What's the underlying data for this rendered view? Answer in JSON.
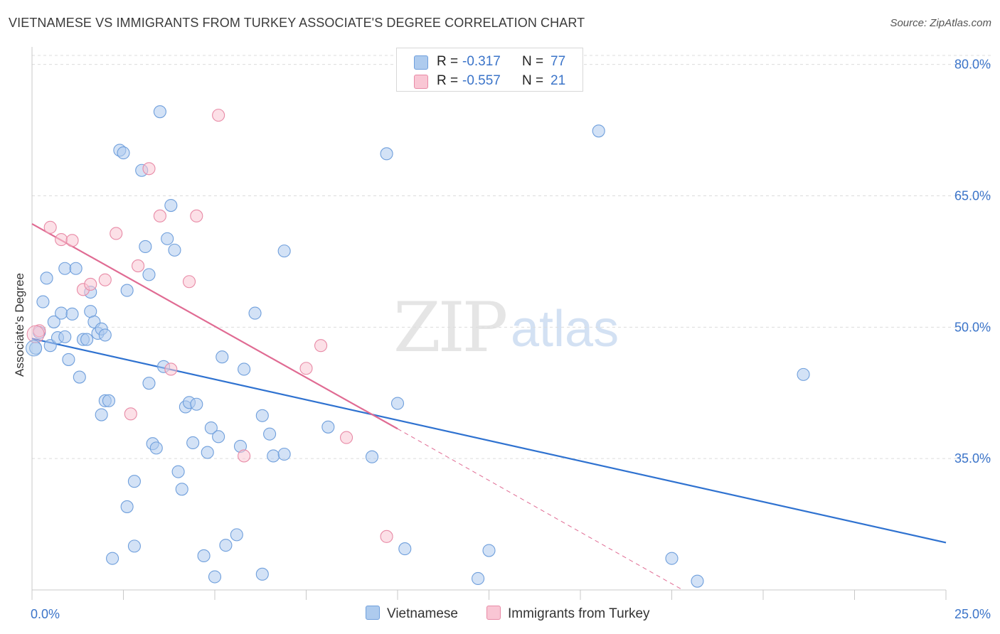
{
  "header": {
    "title": "VIETNAMESE VS IMMIGRANTS FROM TURKEY ASSOCIATE'S DEGREE CORRELATION CHART",
    "source": "Source: ZipAtlas.com"
  },
  "watermark": {
    "zip": "ZIP",
    "atlas": "atlas"
  },
  "legend": {
    "rows": [
      {
        "r_label": "R =",
        "r_value": "-0.317",
        "n_label": "N =",
        "n_value": "77",
        "color": "#aecbee",
        "border": "#6f9fdc"
      },
      {
        "r_label": "R =",
        "r_value": "-0.557",
        "n_label": "N =",
        "n_value": "21",
        "color": "#f9c6d4",
        "border": "#e88aa6"
      }
    ]
  },
  "bottom_legend": {
    "vietnamese": "Vietnamese",
    "turkey": "Immigrants from Turkey"
  },
  "colors": {
    "blue_fill": "#aecbee",
    "blue_edge": "#6f9fdc",
    "blue_line": "#2f72d0",
    "pink_fill": "#f9c6d4",
    "pink_edge": "#e88aa6",
    "pink_line": "#e06b93",
    "grid": "#dcdcdc",
    "tick_label": "#3b74c9"
  },
  "chart_data": {
    "type": "scatter",
    "title": "VIETNAMESE VS IMMIGRANTS FROM TURKEY ASSOCIATE'S DEGREE CORRELATION CHART",
    "xlabel": "",
    "ylabel": "Associate's Degree",
    "xlim": [
      0,
      25
    ],
    "ylim": [
      20,
      82
    ],
    "x_tick_labels": [
      "0.0%",
      "25.0%"
    ],
    "y_ticks": [
      35,
      50,
      65,
      80
    ],
    "y_tick_labels": [
      "35.0%",
      "50.0%",
      "65.0%",
      "80.0%"
    ],
    "grid": true,
    "legend_position": "top-center",
    "series": [
      {
        "name": "Vietnamese",
        "r": -0.317,
        "n": 77,
        "trend": {
          "x": [
            0,
            25
          ],
          "y": [
            48.7,
            25.4
          ]
        },
        "points": [
          [
            0.1,
            47.6
          ],
          [
            0.2,
            49.4
          ],
          [
            0.3,
            52.9
          ],
          [
            0.4,
            55.6
          ],
          [
            0.5,
            47.9
          ],
          [
            0.6,
            50.6
          ],
          [
            0.7,
            48.8
          ],
          [
            0.8,
            51.6
          ],
          [
            0.9,
            48.9
          ],
          [
            0.9,
            56.7
          ],
          [
            1.0,
            46.3
          ],
          [
            1.1,
            51.5
          ],
          [
            1.2,
            56.7
          ],
          [
            1.3,
            44.3
          ],
          [
            1.4,
            48.6
          ],
          [
            1.5,
            48.6
          ],
          [
            1.6,
            54.0
          ],
          [
            1.6,
            51.8
          ],
          [
            1.7,
            50.6
          ],
          [
            1.8,
            49.3
          ],
          [
            1.9,
            40.0
          ],
          [
            1.9,
            49.8
          ],
          [
            2.0,
            49.1
          ],
          [
            2.0,
            41.6
          ],
          [
            2.1,
            41.6
          ],
          [
            2.2,
            23.6
          ],
          [
            2.4,
            70.2
          ],
          [
            2.5,
            69.9
          ],
          [
            2.6,
            54.2
          ],
          [
            2.6,
            29.5
          ],
          [
            2.8,
            32.4
          ],
          [
            2.8,
            25.0
          ],
          [
            3.0,
            67.9
          ],
          [
            3.1,
            59.2
          ],
          [
            3.2,
            43.6
          ],
          [
            3.2,
            56.0
          ],
          [
            3.3,
            36.7
          ],
          [
            3.4,
            36.2
          ],
          [
            3.5,
            74.6
          ],
          [
            3.6,
            45.5
          ],
          [
            3.7,
            60.1
          ],
          [
            3.8,
            63.9
          ],
          [
            3.9,
            58.8
          ],
          [
            4.1,
            31.5
          ],
          [
            4.2,
            40.9
          ],
          [
            4.3,
            41.4
          ],
          [
            4.4,
            36.8
          ],
          [
            4.5,
            41.2
          ],
          [
            4.7,
            23.9
          ],
          [
            4.8,
            35.7
          ],
          [
            4.9,
            38.5
          ],
          [
            5.0,
            21.5
          ],
          [
            5.1,
            37.5
          ],
          [
            5.2,
            46.6
          ],
          [
            5.3,
            25.1
          ],
          [
            5.6,
            26.3
          ],
          [
            5.7,
            36.4
          ],
          [
            5.8,
            45.2
          ],
          [
            6.1,
            51.6
          ],
          [
            6.3,
            39.9
          ],
          [
            6.3,
            21.8
          ],
          [
            6.5,
            37.8
          ],
          [
            6.6,
            35.3
          ],
          [
            6.9,
            35.5
          ],
          [
            6.9,
            58.7
          ],
          [
            8.1,
            38.6
          ],
          [
            9.3,
            35.2
          ],
          [
            9.7,
            69.8
          ],
          [
            10.0,
            41.3
          ],
          [
            10.2,
            24.7
          ],
          [
            12.2,
            21.3
          ],
          [
            12.5,
            24.5
          ],
          [
            15.5,
            72.4
          ],
          [
            17.5,
            23.6
          ],
          [
            18.2,
            21.0
          ],
          [
            21.1,
            44.6
          ],
          [
            4.0,
            33.5
          ]
        ]
      },
      {
        "name": "Immigrants from Turkey",
        "r": -0.557,
        "n": 21,
        "trend": {
          "x": [
            0,
            10
          ],
          "y": [
            61.8,
            38.4
          ]
        },
        "trend_extension": {
          "x": [
            10,
            17.8
          ],
          "y": [
            38.4,
            20.0
          ]
        },
        "points": [
          [
            0.2,
            49.6
          ],
          [
            0.5,
            61.4
          ],
          [
            0.8,
            60.0
          ],
          [
            1.1,
            59.9
          ],
          [
            1.4,
            54.3
          ],
          [
            1.6,
            54.9
          ],
          [
            2.0,
            55.4
          ],
          [
            2.3,
            60.7
          ],
          [
            2.7,
            40.1
          ],
          [
            2.9,
            57.0
          ],
          [
            3.2,
            68.1
          ],
          [
            3.5,
            62.7
          ],
          [
            3.8,
            45.2
          ],
          [
            4.3,
            55.2
          ],
          [
            4.5,
            62.7
          ],
          [
            5.1,
            74.2
          ],
          [
            5.8,
            35.3
          ],
          [
            7.5,
            45.3
          ],
          [
            7.9,
            47.9
          ],
          [
            8.6,
            37.4
          ],
          [
            9.7,
            26.1
          ]
        ]
      }
    ]
  }
}
